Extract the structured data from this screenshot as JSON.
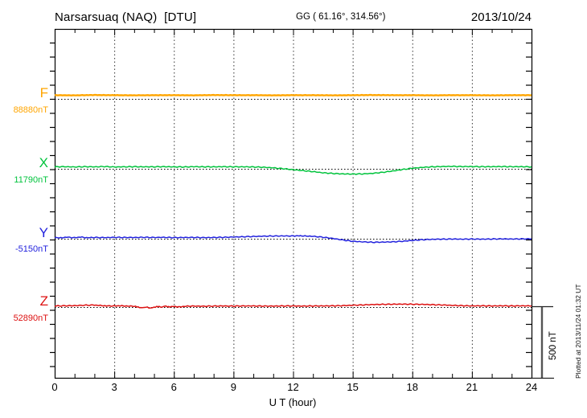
{
  "header": {
    "station": "Narsarsuaq (NAQ)  [DTU]",
    "coords": "GG ( 61.16°, 314.56°)",
    "date": "2013/10/24"
  },
  "axis": {
    "x_label": "U T (hour)",
    "x_ticks": [
      0,
      3,
      6,
      9,
      12,
      15,
      18,
      21,
      24
    ]
  },
  "scale_bar": {
    "label": "500 nT",
    "span_nT": 500
  },
  "footer_note": "Plotted at 2013/11/24 01:32 UT",
  "components": [
    {
      "id": "F",
      "label": "F",
      "baseline_label": "88880nT",
      "color": "#FFA500"
    },
    {
      "id": "X",
      "label": "X",
      "baseline_label": "11790nT",
      "color": "#00C33C"
    },
    {
      "id": "Y",
      "label": "Y",
      "baseline_label": "-5150nT",
      "color": "#2222DD"
    },
    {
      "id": "Z",
      "label": "Z",
      "baseline_label": "52890nT",
      "color": "#DD1111"
    }
  ],
  "chart_data": {
    "type": "line",
    "title": "Narsarsuaq (NAQ) [DTU] magnetogram, 2013/10/24",
    "xlabel": "U T (hour)",
    "xlim": [
      0,
      24
    ],
    "x_ticks": [
      0,
      3,
      6,
      9,
      12,
      15,
      18,
      21,
      24
    ],
    "grid": "vertical dotted lines every 3 h; dotted horizontal baseline per component",
    "legend_position": "left margin (component letters with baseline values)",
    "baseline_separation_nT": 500,
    "series": [
      {
        "name": "F",
        "baseline_nT": 88880,
        "units": "nT",
        "points": [
          [
            0,
            88906
          ],
          [
            1,
            88905
          ],
          [
            2,
            88907
          ],
          [
            3,
            88906
          ],
          [
            4,
            88905
          ],
          [
            5,
            88906
          ],
          [
            6,
            88906
          ],
          [
            7,
            88905
          ],
          [
            8,
            88907
          ],
          [
            9,
            88906
          ],
          [
            10,
            88906
          ],
          [
            11,
            88905
          ],
          [
            12,
            88906
          ],
          [
            13,
            88906
          ],
          [
            14,
            88905
          ],
          [
            15,
            88906
          ],
          [
            16,
            88907
          ],
          [
            17,
            88906
          ],
          [
            18,
            88906
          ],
          [
            19,
            88905
          ],
          [
            20,
            88906
          ],
          [
            21,
            88906
          ],
          [
            22,
            88905
          ],
          [
            23,
            88906
          ],
          [
            24,
            88906
          ]
        ]
      },
      {
        "name": "X",
        "baseline_nT": 11790,
        "units": "nT",
        "points": [
          [
            0,
            11804
          ],
          [
            0.5,
            11805
          ],
          [
            1,
            11803
          ],
          [
            1.5,
            11805
          ],
          [
            2,
            11804
          ],
          [
            2.5,
            11806
          ],
          [
            3,
            11803
          ],
          [
            3.5,
            11804
          ],
          [
            4,
            11805
          ],
          [
            4.5,
            11804
          ],
          [
            5,
            11804
          ],
          [
            5.5,
            11805
          ],
          [
            6,
            11804
          ],
          [
            6.5,
            11803
          ],
          [
            7,
            11805
          ],
          [
            7.5,
            11804
          ],
          [
            8,
            11804
          ],
          [
            8.5,
            11805
          ],
          [
            9,
            11804
          ],
          [
            9.5,
            11804
          ],
          [
            10,
            11803
          ],
          [
            10.5,
            11801
          ],
          [
            11,
            11797
          ],
          [
            11.5,
            11791
          ],
          [
            12,
            11784
          ],
          [
            12.5,
            11777
          ],
          [
            13,
            11770
          ],
          [
            13.5,
            11762
          ],
          [
            14,
            11757
          ],
          [
            14.5,
            11754
          ],
          [
            15,
            11753
          ],
          [
            15.5,
            11754
          ],
          [
            16,
            11758
          ],
          [
            16.5,
            11765
          ],
          [
            17,
            11774
          ],
          [
            17.5,
            11785
          ],
          [
            18,
            11794
          ],
          [
            18.5,
            11800
          ],
          [
            19,
            11804
          ],
          [
            19.5,
            11806
          ],
          [
            20,
            11807
          ],
          [
            20.5,
            11806
          ],
          [
            21,
            11806
          ],
          [
            21.5,
            11805
          ],
          [
            22,
            11805
          ],
          [
            22.5,
            11806
          ],
          [
            23,
            11805
          ],
          [
            23.5,
            11805
          ],
          [
            24,
            11804
          ]
        ]
      },
      {
        "name": "Y",
        "baseline_nT": -5150,
        "units": "nT",
        "points": [
          [
            0,
            -5141
          ],
          [
            0.3,
            -5144
          ],
          [
            0.6,
            -5139
          ],
          [
            1,
            -5143
          ],
          [
            1.3,
            -5138
          ],
          [
            1.6,
            -5143
          ],
          [
            2,
            -5141
          ],
          [
            2.5,
            -5142
          ],
          [
            3,
            -5140
          ],
          [
            3.5,
            -5141
          ],
          [
            4,
            -5141
          ],
          [
            4.5,
            -5140
          ],
          [
            5,
            -5141
          ],
          [
            5.5,
            -5140
          ],
          [
            6,
            -5142
          ],
          [
            6.5,
            -5141
          ],
          [
            7,
            -5141
          ],
          [
            7.5,
            -5142
          ],
          [
            8,
            -5141
          ],
          [
            8.5,
            -5140
          ],
          [
            9,
            -5138
          ],
          [
            9.5,
            -5136
          ],
          [
            10,
            -5134
          ],
          [
            10.5,
            -5132
          ],
          [
            11,
            -5131
          ],
          [
            11.5,
            -5130
          ],
          [
            12,
            -5131
          ],
          [
            12.3,
            -5129
          ],
          [
            12.6,
            -5131
          ],
          [
            13,
            -5133
          ],
          [
            13.5,
            -5139
          ],
          [
            14,
            -5148
          ],
          [
            14.5,
            -5159
          ],
          [
            15,
            -5168
          ],
          [
            15.5,
            -5172
          ],
          [
            16,
            -5175
          ],
          [
            16.5,
            -5174
          ],
          [
            17,
            -5172
          ],
          [
            17.5,
            -5168
          ],
          [
            18,
            -5162
          ],
          [
            18.5,
            -5157
          ],
          [
            19,
            -5154
          ],
          [
            19.5,
            -5153
          ],
          [
            20,
            -5152
          ],
          [
            20.5,
            -5153
          ],
          [
            21,
            -5152
          ],
          [
            21.5,
            -5153
          ],
          [
            22,
            -5152
          ],
          [
            22.5,
            -5151
          ],
          [
            23,
            -5152
          ],
          [
            23.5,
            -5151
          ],
          [
            24,
            -5151
          ]
        ]
      },
      {
        "name": "Z",
        "baseline_nT": 52890,
        "units": "nT",
        "points": [
          [
            0,
            52898
          ],
          [
            0.5,
            52899
          ],
          [
            1,
            52900
          ],
          [
            1.5,
            52903
          ],
          [
            2,
            52904
          ],
          [
            2.3,
            52901
          ],
          [
            2.6,
            52898
          ],
          [
            3,
            52898
          ],
          [
            3.3,
            52899
          ],
          [
            3.6,
            52897
          ],
          [
            4,
            52896
          ],
          [
            4.2,
            52890
          ],
          [
            4.4,
            52885
          ],
          [
            4.6,
            52892
          ],
          [
            4.8,
            52882
          ],
          [
            5,
            52889
          ],
          [
            5.2,
            52894
          ],
          [
            5.4,
            52890
          ],
          [
            5.6,
            52895
          ],
          [
            5.8,
            52892
          ],
          [
            6,
            52894
          ],
          [
            6.3,
            52891
          ],
          [
            6.6,
            52896
          ],
          [
            7,
            52897
          ],
          [
            7.5,
            52896
          ],
          [
            8,
            52897
          ],
          [
            8.5,
            52898
          ],
          [
            9,
            52897
          ],
          [
            9.5,
            52898
          ],
          [
            10,
            52898
          ],
          [
            10.5,
            52897
          ],
          [
            11,
            52897
          ],
          [
            11.5,
            52898
          ],
          [
            12,
            52898
          ],
          [
            12.5,
            52897
          ],
          [
            13,
            52898
          ],
          [
            13.5,
            52898
          ],
          [
            14,
            52899
          ],
          [
            14.5,
            52900
          ],
          [
            15,
            52903
          ],
          [
            15.5,
            52905
          ],
          [
            16,
            52908
          ],
          [
            16.5,
            52909
          ],
          [
            17,
            52910
          ],
          [
            17.5,
            52911
          ],
          [
            18,
            52910
          ],
          [
            18.5,
            52909
          ],
          [
            19,
            52907
          ],
          [
            19.5,
            52905
          ],
          [
            20,
            52902
          ],
          [
            20.5,
            52900
          ],
          [
            21,
            52898
          ],
          [
            21.5,
            52899
          ],
          [
            22,
            52898
          ],
          [
            22.5,
            52899
          ],
          [
            23,
            52898
          ],
          [
            23.5,
            52899
          ],
          [
            24,
            52898
          ]
        ]
      }
    ]
  }
}
